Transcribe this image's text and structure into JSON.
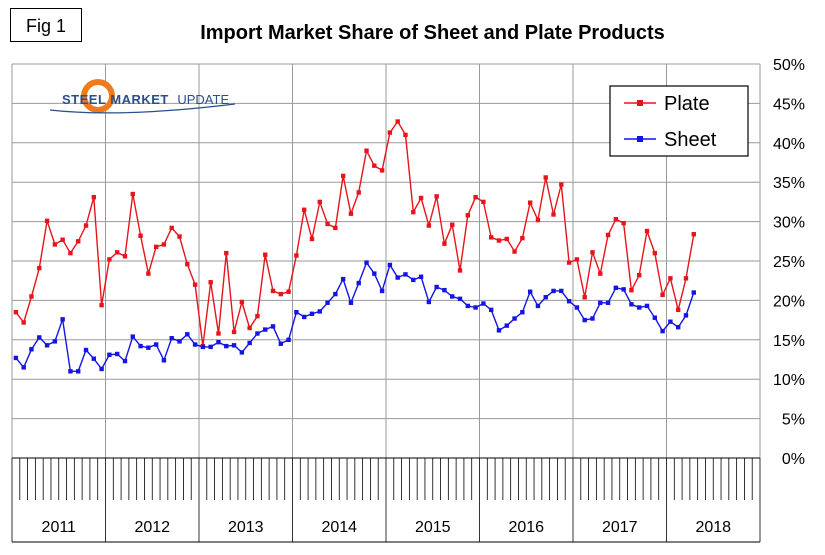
{
  "fig_label": "Fig 1",
  "logo": {
    "bold": "STEEL MARKET",
    "light": "UPDATE"
  },
  "colors": {
    "plate": "#e8141c",
    "sheet": "#1414e8",
    "grid": "#9a9a9a"
  },
  "chart_data": {
    "type": "line",
    "title": "Import Market Share of Sheet and Plate Products",
    "xlabel": "",
    "ylabel": "",
    "ylim": [
      0,
      50
    ],
    "y_ticks": [
      "0%",
      "5%",
      "10%",
      "15%",
      "20%",
      "25%",
      "30%",
      "35%",
      "40%",
      "45%",
      "50%"
    ],
    "years": [
      "2011",
      "2012",
      "2013",
      "2014",
      "2015",
      "2016",
      "2017",
      "2018"
    ],
    "months_per_year": 12,
    "legend": {
      "position": "top-right",
      "entries": [
        "Plate",
        "Sheet"
      ]
    },
    "series": [
      {
        "name": "Plate",
        "values": [
          18.5,
          17.2,
          20.5,
          24.1,
          30.1,
          27.1,
          27.7,
          26.0,
          27.5,
          29.5,
          33.1,
          19.4,
          25.2,
          26.1,
          25.6,
          33.5,
          28.2,
          23.4,
          26.8,
          27.1,
          29.2,
          28.1,
          24.6,
          22.0,
          14.2,
          22.3,
          15.8,
          26.0,
          16.0,
          19.8,
          16.5,
          18.0,
          25.8,
          21.2,
          20.8,
          21.1,
          25.7,
          31.5,
          27.8,
          32.5,
          29.7,
          29.2,
          35.8,
          31.0,
          33.7,
          39.0,
          37.1,
          36.5,
          41.3,
          42.7,
          41.0,
          31.2,
          33.0,
          29.5,
          33.2,
          27.2,
          29.6,
          23.8,
          30.8,
          33.1,
          32.5,
          28.0,
          27.6,
          27.8,
          26.2,
          27.9,
          32.4,
          30.2,
          35.6,
          30.9,
          34.7,
          24.8,
          25.2,
          20.4,
          26.1,
          23.4,
          28.3,
          30.3,
          29.8,
          21.3,
          23.2,
          28.8,
          26.0,
          20.7,
          22.8,
          18.8,
          22.8,
          28.4
        ]
      },
      {
        "name": "Sheet",
        "values": [
          12.7,
          11.5,
          13.8,
          15.3,
          14.3,
          14.8,
          17.6,
          11.0,
          11.0,
          13.7,
          12.6,
          11.3,
          13.1,
          13.2,
          12.3,
          15.4,
          14.2,
          14.0,
          14.4,
          12.4,
          15.2,
          14.8,
          15.7,
          14.4,
          14.1,
          14.1,
          14.7,
          14.2,
          14.3,
          13.4,
          14.6,
          15.8,
          16.3,
          16.7,
          14.5,
          15.0,
          18.5,
          17.9,
          18.3,
          18.6,
          19.7,
          20.8,
          22.7,
          19.7,
          22.2,
          24.8,
          23.4,
          21.2,
          24.5,
          22.9,
          23.3,
          22.6,
          23.0,
          19.8,
          21.7,
          21.3,
          20.5,
          20.2,
          19.3,
          19.1,
          19.6,
          18.8,
          16.2,
          16.8,
          17.7,
          18.5,
          21.1,
          19.3,
          20.4,
          21.2,
          21.2,
          19.9,
          19.1,
          17.5,
          17.7,
          19.7,
          19.7,
          21.6,
          21.4,
          19.5,
          19.1,
          19.3,
          17.8,
          16.1,
          17.3,
          16.6,
          18.1,
          21.0
        ]
      }
    ]
  }
}
